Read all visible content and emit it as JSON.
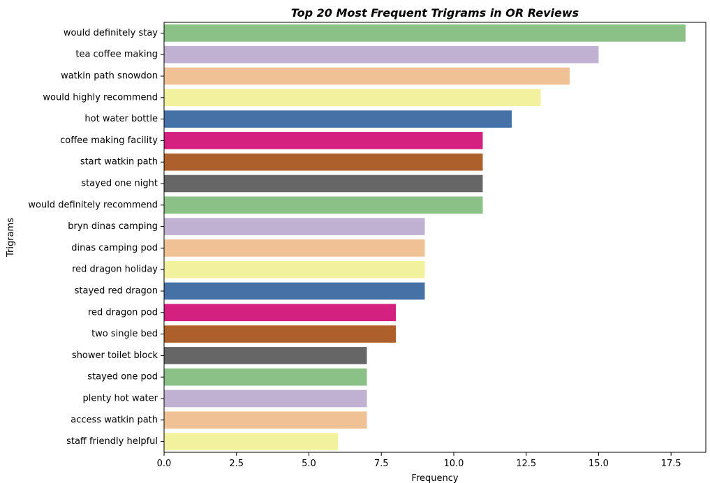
{
  "chart_data": {
    "type": "bar",
    "orientation": "horizontal",
    "title": "Top 20 Most Frequent Trigrams in OR Reviews",
    "xlabel": "Frequency",
    "ylabel": "Trigrams",
    "xlim": [
      0,
      18.7
    ],
    "xticks": [
      "0.0",
      "2.5",
      "5.0",
      "7.5",
      "10.0",
      "12.5",
      "15.0",
      "17.5"
    ],
    "grid": false,
    "legend": "none",
    "categories": [
      "would definitely stay",
      "tea coffee making",
      "watkin path snowdon",
      "would highly recommend",
      "hot water bottle",
      "coffee making facility",
      "start watkin path",
      "stayed one night",
      "would definitely recommend",
      "bryn dinas camping",
      "dinas camping pod",
      "red dragon holiday",
      "stayed red dragon",
      "red dragon pod",
      "two single bed",
      "shower toilet block",
      "stayed one pod",
      "plenty hot water",
      "access watkin path",
      "staff friendly helpful"
    ],
    "values": [
      18,
      15,
      14,
      13,
      12,
      11,
      11,
      11,
      11,
      9,
      9,
      9,
      9,
      8,
      8,
      7,
      7,
      7,
      7,
      6
    ],
    "colors": [
      "#8bc187",
      "#c0b1d2",
      "#efc195",
      "#f2f29e",
      "#4571a6",
      "#d4207f",
      "#ad5f2c",
      "#666666",
      "#8bc187",
      "#c0b1d2",
      "#efc195",
      "#f2f29e",
      "#4571a6",
      "#d4207f",
      "#ad5f2c",
      "#666666",
      "#8bc187",
      "#c0b1d2",
      "#efc195",
      "#f2f29e"
    ]
  }
}
